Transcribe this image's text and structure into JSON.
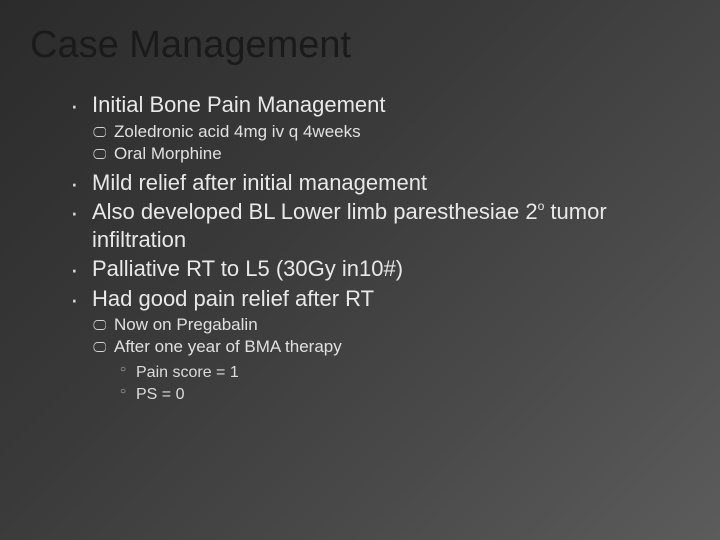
{
  "slide": {
    "title": "Case Management",
    "background_gradient": [
      "#2b2b2b",
      "#3a3a3a",
      "#4a4a4a",
      "#5c5c5c"
    ],
    "title_color": "#1a1a1a",
    "text_color": "#e8e8e8",
    "title_fontsize": 38,
    "lvl1_fontsize": 22,
    "lvl2_fontsize": 17,
    "lvl3_fontsize": 16,
    "items": {
      "p1": "Initial Bone Pain Management",
      "p1a": "Zoledronic acid 4mg iv q 4weeks",
      "p1b": "Oral Morphine",
      "p2": "Mild relief after initial management",
      "p3_pre": "Also developed BL Lower limb paresthesiae 2",
      "p3_sup": "o",
      "p3_post": " tumor infiltration",
      "p4": "Palliative RT to L5 (30Gy in10#)",
      "p5": "Had good pain relief after RT",
      "p5a": "Now on Pregabalin",
      "p5b": " After one year of BMA therapy",
      "p5b1": " Pain score = 1",
      "p5b2": " PS = 0"
    }
  }
}
